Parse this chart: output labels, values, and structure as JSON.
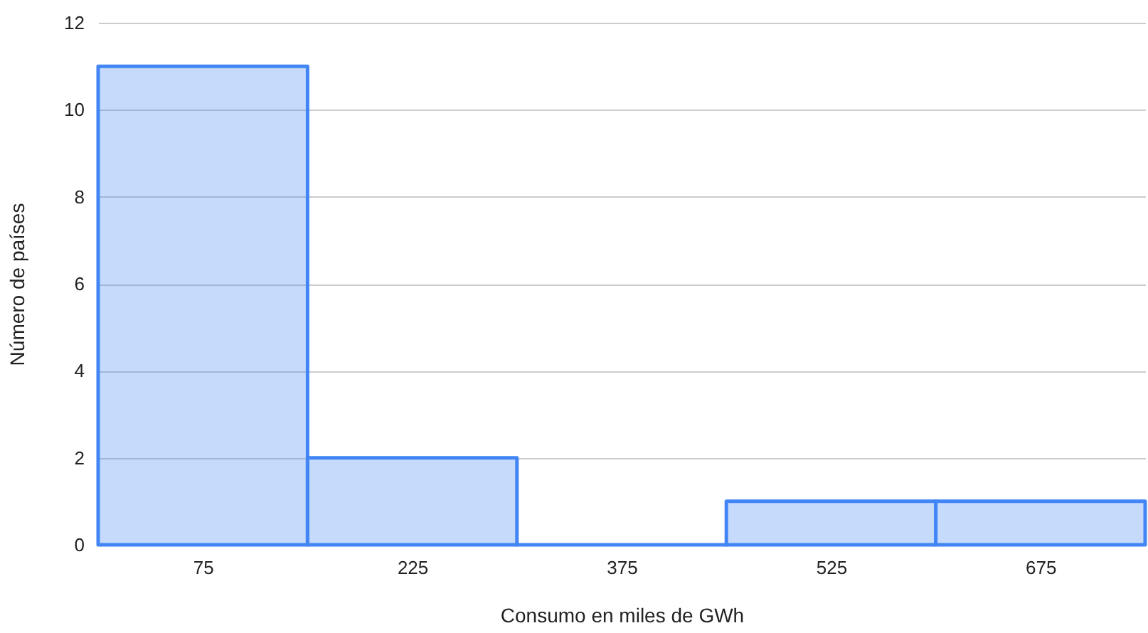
{
  "chart_data": {
    "type": "histogram",
    "xlabel": "Consumo en miles de GWh",
    "ylabel": "Número de países",
    "bins": [
      0,
      150,
      300,
      450,
      600,
      750
    ],
    "values": [
      11,
      2,
      0,
      1,
      1
    ],
    "color": "#4285f4",
    "xlim": [
      0,
      750
    ],
    "xticks": [
      75,
      225,
      375,
      525,
      675
    ],
    "ylim": [
      0,
      12
    ],
    "yticks": [
      0,
      2,
      4,
      6,
      8,
      10,
      12
    ],
    "grid": "y"
  }
}
